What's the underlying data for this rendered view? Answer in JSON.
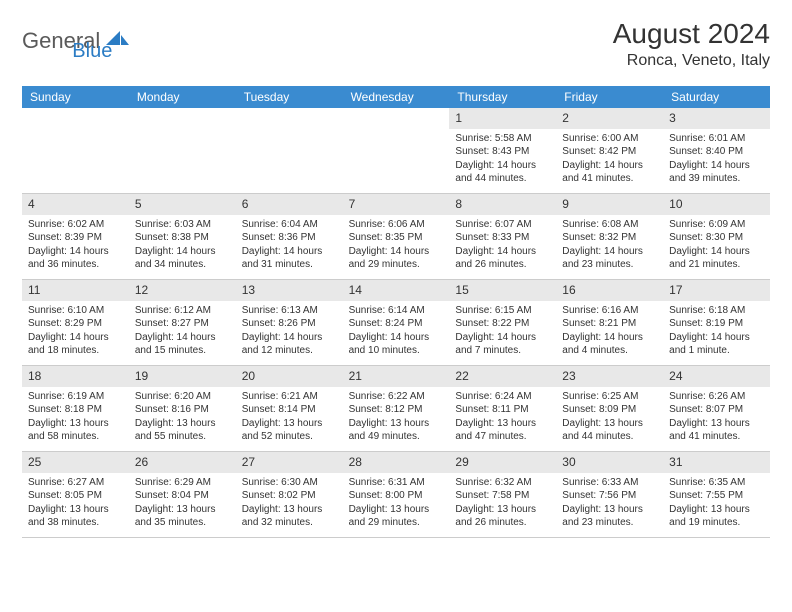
{
  "logo": {
    "text1": "General",
    "text2": "Blue",
    "color1": "#5a5a5a",
    "color2": "#2b7cc4",
    "icon_color": "#2b7cc4"
  },
  "title": "August 2024",
  "location": "Ronca, Veneto, Italy",
  "header_bg": "#3a8bd0",
  "header_fg": "#ffffff",
  "daynum_bg": "#e8e8e8",
  "border_color": "#cccccc",
  "day_headers": [
    "Sunday",
    "Monday",
    "Tuesday",
    "Wednesday",
    "Thursday",
    "Friday",
    "Saturday"
  ],
  "weeks": [
    [
      null,
      null,
      null,
      null,
      {
        "n": "1",
        "sr": "5:58 AM",
        "ss": "8:43 PM",
        "dl": "14 hours and 44 minutes."
      },
      {
        "n": "2",
        "sr": "6:00 AM",
        "ss": "8:42 PM",
        "dl": "14 hours and 41 minutes."
      },
      {
        "n": "3",
        "sr": "6:01 AM",
        "ss": "8:40 PM",
        "dl": "14 hours and 39 minutes."
      }
    ],
    [
      {
        "n": "4",
        "sr": "6:02 AM",
        "ss": "8:39 PM",
        "dl": "14 hours and 36 minutes."
      },
      {
        "n": "5",
        "sr": "6:03 AM",
        "ss": "8:38 PM",
        "dl": "14 hours and 34 minutes."
      },
      {
        "n": "6",
        "sr": "6:04 AM",
        "ss": "8:36 PM",
        "dl": "14 hours and 31 minutes."
      },
      {
        "n": "7",
        "sr": "6:06 AM",
        "ss": "8:35 PM",
        "dl": "14 hours and 29 minutes."
      },
      {
        "n": "8",
        "sr": "6:07 AM",
        "ss": "8:33 PM",
        "dl": "14 hours and 26 minutes."
      },
      {
        "n": "9",
        "sr": "6:08 AM",
        "ss": "8:32 PM",
        "dl": "14 hours and 23 minutes."
      },
      {
        "n": "10",
        "sr": "6:09 AM",
        "ss": "8:30 PM",
        "dl": "14 hours and 21 minutes."
      }
    ],
    [
      {
        "n": "11",
        "sr": "6:10 AM",
        "ss": "8:29 PM",
        "dl": "14 hours and 18 minutes."
      },
      {
        "n": "12",
        "sr": "6:12 AM",
        "ss": "8:27 PM",
        "dl": "14 hours and 15 minutes."
      },
      {
        "n": "13",
        "sr": "6:13 AM",
        "ss": "8:26 PM",
        "dl": "14 hours and 12 minutes."
      },
      {
        "n": "14",
        "sr": "6:14 AM",
        "ss": "8:24 PM",
        "dl": "14 hours and 10 minutes."
      },
      {
        "n": "15",
        "sr": "6:15 AM",
        "ss": "8:22 PM",
        "dl": "14 hours and 7 minutes."
      },
      {
        "n": "16",
        "sr": "6:16 AM",
        "ss": "8:21 PM",
        "dl": "14 hours and 4 minutes."
      },
      {
        "n": "17",
        "sr": "6:18 AM",
        "ss": "8:19 PM",
        "dl": "14 hours and 1 minute."
      }
    ],
    [
      {
        "n": "18",
        "sr": "6:19 AM",
        "ss": "8:18 PM",
        "dl": "13 hours and 58 minutes."
      },
      {
        "n": "19",
        "sr": "6:20 AM",
        "ss": "8:16 PM",
        "dl": "13 hours and 55 minutes."
      },
      {
        "n": "20",
        "sr": "6:21 AM",
        "ss": "8:14 PM",
        "dl": "13 hours and 52 minutes."
      },
      {
        "n": "21",
        "sr": "6:22 AM",
        "ss": "8:12 PM",
        "dl": "13 hours and 49 minutes."
      },
      {
        "n": "22",
        "sr": "6:24 AM",
        "ss": "8:11 PM",
        "dl": "13 hours and 47 minutes."
      },
      {
        "n": "23",
        "sr": "6:25 AM",
        "ss": "8:09 PM",
        "dl": "13 hours and 44 minutes."
      },
      {
        "n": "24",
        "sr": "6:26 AM",
        "ss": "8:07 PM",
        "dl": "13 hours and 41 minutes."
      }
    ],
    [
      {
        "n": "25",
        "sr": "6:27 AM",
        "ss": "8:05 PM",
        "dl": "13 hours and 38 minutes."
      },
      {
        "n": "26",
        "sr": "6:29 AM",
        "ss": "8:04 PM",
        "dl": "13 hours and 35 minutes."
      },
      {
        "n": "27",
        "sr": "6:30 AM",
        "ss": "8:02 PM",
        "dl": "13 hours and 32 minutes."
      },
      {
        "n": "28",
        "sr": "6:31 AM",
        "ss": "8:00 PM",
        "dl": "13 hours and 29 minutes."
      },
      {
        "n": "29",
        "sr": "6:32 AM",
        "ss": "7:58 PM",
        "dl": "13 hours and 26 minutes."
      },
      {
        "n": "30",
        "sr": "6:33 AM",
        "ss": "7:56 PM",
        "dl": "13 hours and 23 minutes."
      },
      {
        "n": "31",
        "sr": "6:35 AM",
        "ss": "7:55 PM",
        "dl": "13 hours and 19 minutes."
      }
    ]
  ],
  "labels": {
    "sunrise": "Sunrise:",
    "sunset": "Sunset:",
    "daylight": "Daylight:"
  }
}
